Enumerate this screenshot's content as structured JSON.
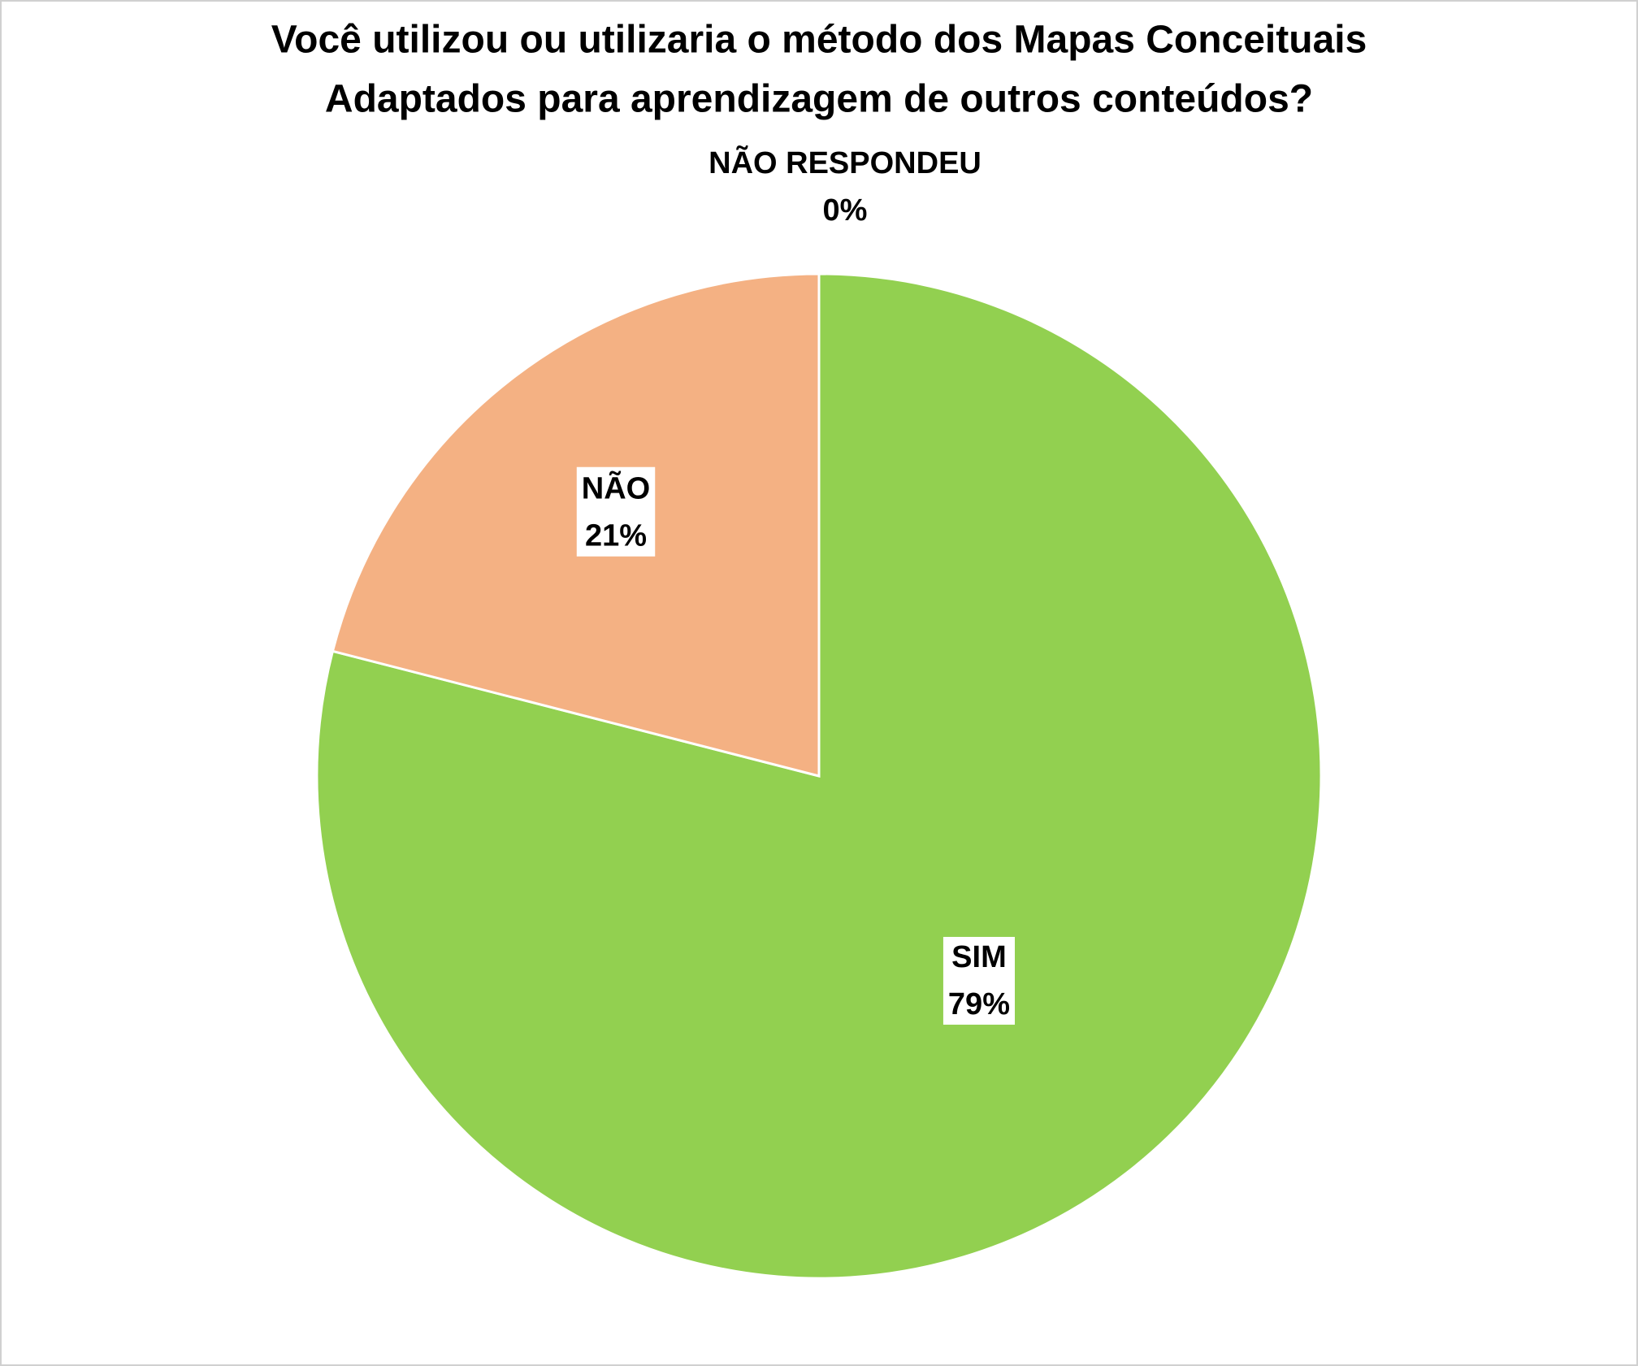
{
  "chart_data": {
    "type": "pie",
    "title": [
      "Você utilizou ou utilizaria o método dos Mapas Conceituais",
      "Adaptados para aprendizagem de outros conteúdos?"
    ],
    "categories": [
      "SIM",
      "NÃO",
      "NÃO RESPONDEU"
    ],
    "values": [
      79,
      21,
      0
    ],
    "value_labels": [
      "79%",
      "21%",
      "0%"
    ],
    "colors": [
      "#92d050",
      "#f4b183",
      "#a5a5a5"
    ]
  }
}
